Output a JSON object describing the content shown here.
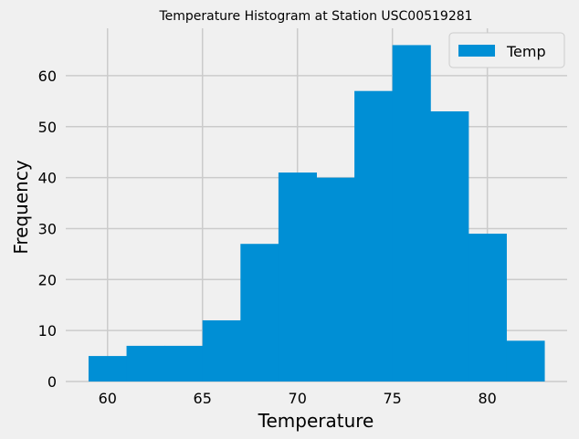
{
  "chart_data": {
    "type": "bar",
    "title": "Temperature Histogram at Station USC00519281",
    "xlabel": "Temperature",
    "ylabel": "Frequency",
    "xlim": [
      57.8,
      84.2
    ],
    "ylim": [
      0,
      69.3
    ],
    "xticks": [
      60,
      65,
      70,
      75,
      80
    ],
    "yticks": [
      0,
      10,
      20,
      30,
      40,
      50,
      60
    ],
    "grid": true,
    "legend_position": "top-right",
    "bin_edges": [
      59,
      61,
      63,
      65,
      67,
      69,
      71,
      73,
      75,
      77,
      79,
      81,
      83
    ],
    "series": [
      {
        "name": "Temp",
        "values": [
          5,
          7,
          7,
          12,
          27,
          41,
          40,
          57,
          66,
          53,
          29,
          8
        ]
      }
    ],
    "colors": {
      "bar": "#008fd5",
      "background": "#f0f0f0",
      "grid": "#cbcbcb"
    }
  }
}
